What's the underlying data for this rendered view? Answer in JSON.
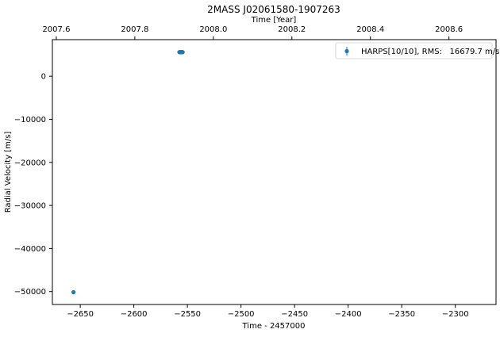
{
  "chart_data": {
    "type": "scatter",
    "title": "2MASS J02061580-1907263",
    "xlabel": "Time - 2457000",
    "ylabel": "Radial Velocity [m/s]",
    "x2label": "Time [Year]",
    "xlim": [
      -2676,
      -2262
    ],
    "ylim": [
      -53000,
      8500
    ],
    "xticks": [
      -2650,
      -2600,
      -2550,
      -2500,
      -2450,
      -2400,
      -2350,
      -2300
    ],
    "yticks": [
      0,
      -10000,
      -20000,
      -30000,
      -40000,
      -50000
    ],
    "x2lim": [
      2007.59,
      2008.72
    ],
    "x2ticks": [
      2007.6,
      2007.8,
      2008.0,
      2008.2,
      2008.4,
      2008.6
    ],
    "grid": false,
    "legend_position": "top-right",
    "color": "#1f77b4",
    "series": [
      {
        "name": "HARPS[10/10], RMS:   16679.7 m/s",
        "marker": "circle",
        "points": [
          {
            "x": -2656.3,
            "y": -50150
          },
          {
            "x": -2557.5,
            "y": 5600
          },
          {
            "x": -2557.0,
            "y": 5580
          },
          {
            "x": -2556.6,
            "y": 5620
          },
          {
            "x": -2556.2,
            "y": 5590
          },
          {
            "x": -2555.9,
            "y": 5610
          },
          {
            "x": -2555.5,
            "y": 5570
          },
          {
            "x": -2555.1,
            "y": 5600
          },
          {
            "x": -2554.8,
            "y": 5630
          },
          {
            "x": -2554.4,
            "y": 5590
          }
        ]
      }
    ]
  }
}
